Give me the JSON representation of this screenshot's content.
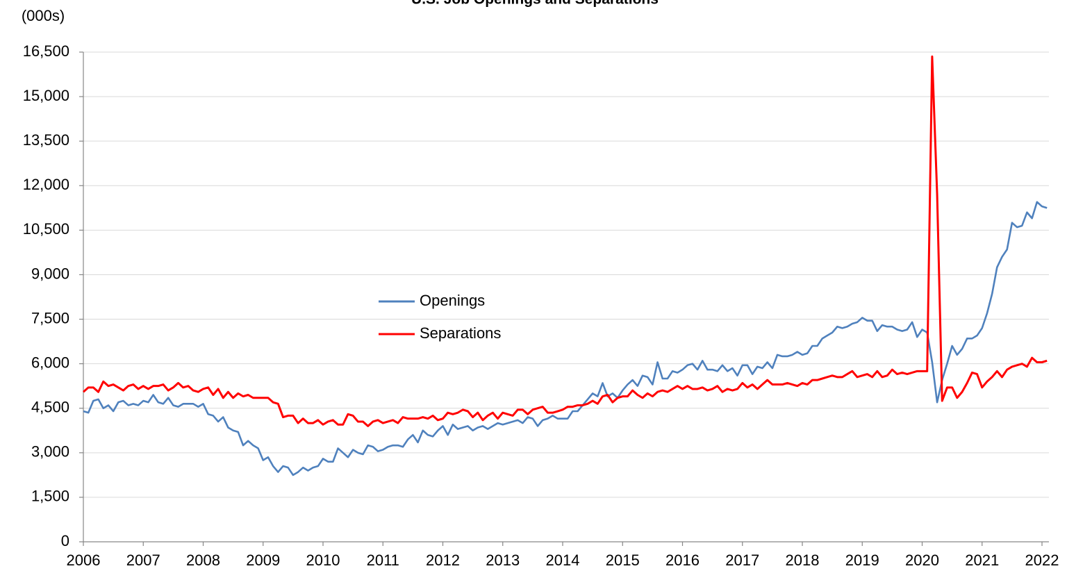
{
  "chart_data": {
    "type": "line",
    "title": "U.S. Job Openings and Separations",
    "y_label": "(000s)",
    "categories": [
      "2006",
      null,
      null,
      null,
      null,
      null,
      null,
      null,
      null,
      null,
      null,
      null,
      "2007",
      null,
      null,
      null,
      null,
      null,
      null,
      null,
      null,
      null,
      null,
      null,
      "2008",
      null,
      null,
      null,
      null,
      null,
      null,
      null,
      null,
      null,
      null,
      null,
      "2009",
      null,
      null,
      null,
      null,
      null,
      null,
      null,
      null,
      null,
      null,
      null,
      "2010",
      null,
      null,
      null,
      null,
      null,
      null,
      null,
      null,
      null,
      null,
      null,
      "2011",
      null,
      null,
      null,
      null,
      null,
      null,
      null,
      null,
      null,
      null,
      null,
      "2012",
      null,
      null,
      null,
      null,
      null,
      null,
      null,
      null,
      null,
      null,
      null,
      "2013",
      null,
      null,
      null,
      null,
      null,
      null,
      null,
      null,
      null,
      null,
      null,
      "2014",
      null,
      null,
      null,
      null,
      null,
      null,
      null,
      null,
      null,
      null,
      null,
      "2015",
      null,
      null,
      null,
      null,
      null,
      null,
      null,
      null,
      null,
      null,
      null,
      "2016",
      null,
      null,
      null,
      null,
      null,
      null,
      null,
      null,
      null,
      null,
      null,
      "2017",
      null,
      null,
      null,
      null,
      null,
      null,
      null,
      null,
      null,
      null,
      null,
      "2018",
      null,
      null,
      null,
      null,
      null,
      null,
      null,
      null,
      null,
      null,
      null,
      "2019",
      null,
      null,
      null,
      null,
      null,
      null,
      null,
      null,
      null,
      null,
      null,
      "2020",
      null,
      null,
      null,
      null,
      null,
      null,
      null,
      null,
      null,
      null,
      null,
      "2021",
      null,
      null,
      null,
      null,
      null,
      null,
      null,
      null,
      null,
      null,
      null,
      "2022",
      null
    ],
    "series": [
      {
        "name": "Openings",
        "color": "#4f81bd",
        "values": [
          4400,
          4350,
          4750,
          4800,
          4500,
          4600,
          4400,
          4700,
          4750,
          4600,
          4650,
          4600,
          4750,
          4700,
          4950,
          4700,
          4650,
          4850,
          4600,
          4550,
          4650,
          4650,
          4650,
          4550,
          4650,
          4300,
          4250,
          4050,
          4200,
          3850,
          3750,
          3700,
          3250,
          3400,
          3250,
          3150,
          2750,
          2850,
          2550,
          2350,
          2550,
          2500,
          2250,
          2350,
          2500,
          2400,
          2500,
          2550,
          2800,
          2700,
          2700,
          3150,
          3000,
          2850,
          3100,
          3000,
          2950,
          3250,
          3200,
          3050,
          3100,
          3200,
          3250,
          3250,
          3200,
          3450,
          3600,
          3350,
          3750,
          3600,
          3550,
          3750,
          3900,
          3600,
          3950,
          3800,
          3850,
          3900,
          3750,
          3850,
          3900,
          3800,
          3900,
          4000,
          3950,
          4000,
          4050,
          4100,
          4000,
          4200,
          4150,
          3900,
          4100,
          4150,
          4250,
          4150,
          4150,
          4150,
          4400,
          4400,
          4600,
          4800,
          5000,
          4900,
          5350,
          4900,
          5000,
          4850,
          5100,
          5300,
          5450,
          5250,
          5600,
          5550,
          5300,
          6050,
          5500,
          5500,
          5750,
          5700,
          5800,
          5950,
          6000,
          5800,
          6100,
          5800,
          5800,
          5750,
          5950,
          5750,
          5850,
          5600,
          5950,
          5950,
          5650,
          5900,
          5850,
          6050,
          5850,
          6300,
          6250,
          6250,
          6300,
          6400,
          6300,
          6350,
          6600,
          6600,
          6850,
          6950,
          7050,
          7250,
          7200,
          7250,
          7350,
          7400,
          7550,
          7450,
          7450,
          7100,
          7300,
          7250,
          7250,
          7150,
          7100,
          7150,
          7400,
          6900,
          7150,
          7050,
          6050,
          4700,
          5450,
          6000,
          6600,
          6300,
          6500,
          6850,
          6850,
          6950,
          7200,
          7700,
          8350,
          9250,
          9600,
          9850,
          10750,
          10600,
          10650,
          11100,
          10900,
          11450,
          11300,
          11250
        ]
      },
      {
        "name": "Separations",
        "color": "#ff0000",
        "values": [
          5050,
          5200,
          5200,
          5050,
          5400,
          5250,
          5300,
          5200,
          5100,
          5250,
          5300,
          5150,
          5250,
          5150,
          5250,
          5250,
          5300,
          5100,
          5200,
          5350,
          5200,
          5250,
          5100,
          5050,
          5150,
          5200,
          4950,
          5150,
          4850,
          5050,
          4850,
          5000,
          4900,
          4950,
          4850,
          4850,
          4850,
          4850,
          4700,
          4650,
          4200,
          4250,
          4250,
          4000,
          4150,
          4000,
          4000,
          4100,
          3950,
          4050,
          4100,
          3950,
          3950,
          4300,
          4250,
          4050,
          4050,
          3900,
          4050,
          4100,
          4000,
          4050,
          4100,
          4000,
          4200,
          4150,
          4150,
          4150,
          4200,
          4150,
          4250,
          4100,
          4150,
          4350,
          4300,
          4350,
          4450,
          4400,
          4200,
          4350,
          4100,
          4250,
          4350,
          4150,
          4350,
          4300,
          4250,
          4450,
          4450,
          4300,
          4450,
          4500,
          4550,
          4350,
          4350,
          4400,
          4450,
          4550,
          4550,
          4600,
          4600,
          4650,
          4750,
          4650,
          4900,
          4950,
          4700,
          4850,
          4900,
          4900,
          5100,
          4950,
          4850,
          5000,
          4900,
          5050,
          5100,
          5050,
          5150,
          5250,
          5150,
          5250,
          5150,
          5150,
          5200,
          5100,
          5150,
          5250,
          5050,
          5150,
          5100,
          5150,
          5350,
          5200,
          5300,
          5150,
          5300,
          5450,
          5300,
          5300,
          5300,
          5350,
          5300,
          5250,
          5350,
          5300,
          5450,
          5450,
          5500,
          5550,
          5600,
          5550,
          5550,
          5650,
          5750,
          5550,
          5600,
          5650,
          5550,
          5750,
          5550,
          5600,
          5800,
          5650,
          5700,
          5650,
          5700,
          5750,
          5750,
          5750,
          16350,
          11700,
          4750,
          5200,
          5200,
          4850,
          5050,
          5350,
          5700,
          5650,
          5200,
          5400,
          5550,
          5750,
          5550,
          5800,
          5900,
          5950,
          6000,
          5900,
          6200,
          6050,
          6050,
          6100
        ]
      }
    ],
    "ylim": [
      0,
      16500
    ],
    "yticks": [
      0,
      {
        "value": 1500,
        "label": "1,500"
      },
      {
        "value": 3000,
        "label": "3,000"
      },
      {
        "value": 4500,
        "label": "4,500"
      },
      {
        "value": 6000,
        "label": "6,000"
      },
      {
        "value": 7500,
        "label": "7,500"
      },
      {
        "value": 9000,
        "label": "9,000"
      },
      {
        "value": 10500,
        "label": "10,500"
      },
      {
        "value": 12000,
        "label": "12,000"
      },
      {
        "value": 13500,
        "label": "13,500"
      },
      {
        "value": 15000,
        "label": "15,000"
      },
      {
        "value": 16500,
        "label": "16,500"
      }
    ],
    "grid": true,
    "legend": "center"
  }
}
